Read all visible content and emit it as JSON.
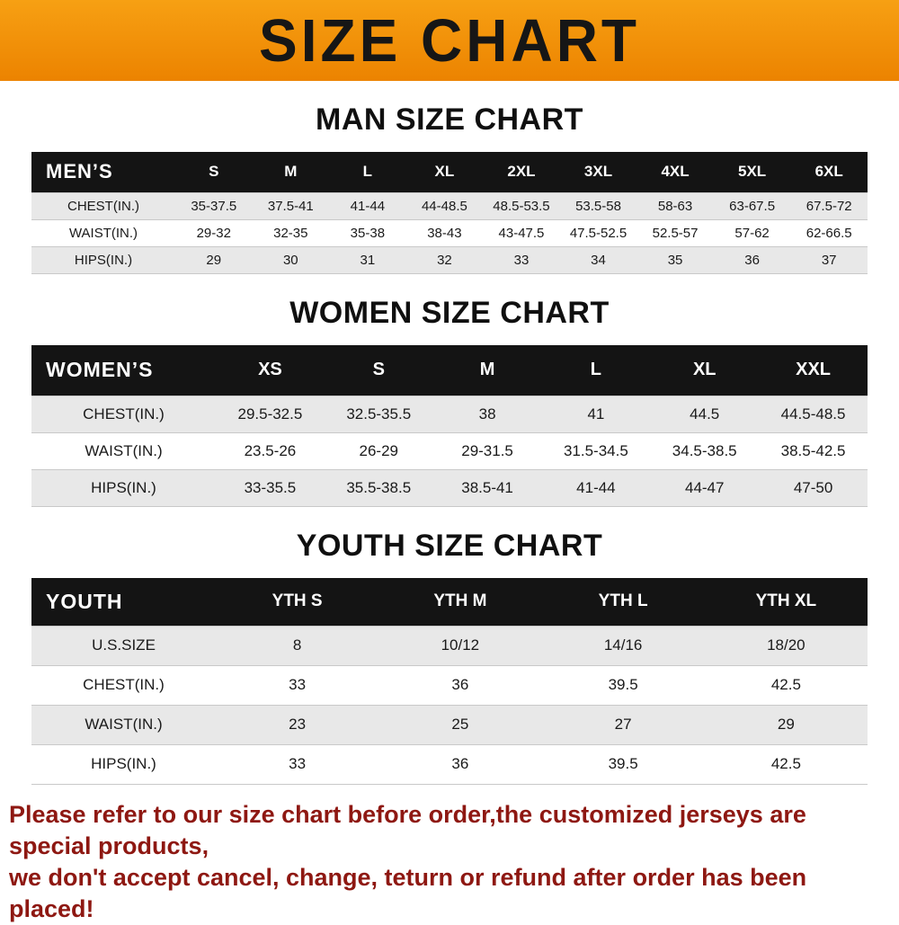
{
  "banner": {
    "title": "SIZE CHART"
  },
  "colors": {
    "banner_orange": "#F08E06",
    "table_header_black": "#141414",
    "row_stripe_gray": "#E8E8E8",
    "footer_text_red": "#8E1812"
  },
  "chart_data": [
    {
      "type": "table",
      "title": "MAN SIZE CHART",
      "columns": [
        "MEN’S",
        "S",
        "M",
        "L",
        "XL",
        "2XL",
        "3XL",
        "4XL",
        "5XL",
        "6XL"
      ],
      "rows": [
        [
          "CHEST(IN.)",
          "35-37.5",
          "37.5-41",
          "41-44",
          "44-48.5",
          "48.5-53.5",
          "53.5-58",
          "58-63",
          "63-67.5",
          "67.5-72"
        ],
        [
          "WAIST(IN.)",
          "29-32",
          "32-35",
          "35-38",
          "38-43",
          "43-47.5",
          "47.5-52.5",
          "52.5-57",
          "57-62",
          "62-66.5"
        ],
        [
          "HIPS(IN.)",
          "29",
          "30",
          "31",
          "32",
          "33",
          "34",
          "35",
          "36",
          "37"
        ]
      ]
    },
    {
      "type": "table",
      "title": "WOMEN SIZE CHART",
      "columns": [
        "WOMEN’S",
        "XS",
        "S",
        "M",
        "L",
        "XL",
        "XXL"
      ],
      "rows": [
        [
          "CHEST(IN.)",
          "29.5-32.5",
          "32.5-35.5",
          "38",
          "41",
          "44.5",
          "44.5-48.5"
        ],
        [
          "WAIST(IN.)",
          "23.5-26",
          "26-29",
          "29-31.5",
          "31.5-34.5",
          "34.5-38.5",
          "38.5-42.5"
        ],
        [
          "HIPS(IN.)",
          "33-35.5",
          "35.5-38.5",
          "38.5-41",
          "41-44",
          "44-47",
          "47-50"
        ]
      ]
    },
    {
      "type": "table",
      "title": "YOUTH SIZE CHART",
      "columns": [
        "YOUTH",
        "YTH S",
        "YTH M",
        "YTH L",
        "YTH XL"
      ],
      "rows": [
        [
          "U.S.SIZE",
          "8",
          "10/12",
          "14/16",
          "18/20"
        ],
        [
          "CHEST(IN.)",
          "33",
          "36",
          "39.5",
          "42.5"
        ],
        [
          "WAIST(IN.)",
          "23",
          "25",
          "27",
          "29"
        ],
        [
          "HIPS(IN.)",
          "33",
          "36",
          "39.5",
          "42.5"
        ]
      ]
    }
  ],
  "footer": {
    "lines": [
      "Please refer to our size chart before order,the customized jerseys are special products,",
      "we don't accept cancel, change, teturn or refund after order has been placed!"
    ]
  }
}
